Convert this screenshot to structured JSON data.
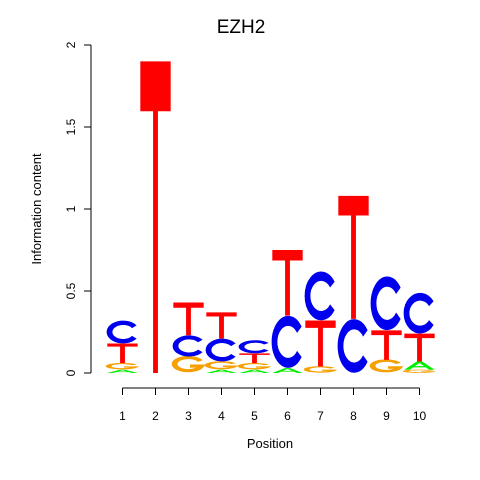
{
  "chart_data": {
    "type": "sequence-logo",
    "title": "EZH2",
    "xlabel": "Position",
    "ylabel": "Information content",
    "ylim": [
      0,
      2
    ],
    "yticks": [
      "0",
      "0.5",
      "1",
      "1.5",
      "2"
    ],
    "xticks": [
      "1",
      "2",
      "3",
      "4",
      "5",
      "6",
      "7",
      "8",
      "9",
      "10"
    ],
    "colors": {
      "A": "#00ee00",
      "C": "#0000ee",
      "G": "#f5a000",
      "T": "#ff0000"
    },
    "positions": [
      {
        "position": "1",
        "stack": [
          {
            "letter": "A",
            "height": 0.02
          },
          {
            "letter": "G",
            "height": 0.04
          },
          {
            "letter": "T",
            "height": 0.12
          },
          {
            "letter": "C",
            "height": 0.14
          }
        ]
      },
      {
        "position": "2",
        "stack": [
          {
            "letter": "T",
            "height": 1.9
          }
        ]
      },
      {
        "position": "3",
        "stack": [
          {
            "letter": "G",
            "height": 0.1
          },
          {
            "letter": "C",
            "height": 0.13
          },
          {
            "letter": "T",
            "height": 0.2
          }
        ]
      },
      {
        "position": "4",
        "stack": [
          {
            "letter": "A",
            "height": 0.02
          },
          {
            "letter": "G",
            "height": 0.05
          },
          {
            "letter": "C",
            "height": 0.14
          },
          {
            "letter": "T",
            "height": 0.16
          }
        ]
      },
      {
        "position": "5",
        "stack": [
          {
            "letter": "A",
            "height": 0.02
          },
          {
            "letter": "G",
            "height": 0.04
          },
          {
            "letter": "T",
            "height": 0.06
          },
          {
            "letter": "C",
            "height": 0.08
          }
        ]
      },
      {
        "position": "6",
        "stack": [
          {
            "letter": "A",
            "height": 0.03
          },
          {
            "letter": "C",
            "height": 0.32
          },
          {
            "letter": "T",
            "height": 0.4
          }
        ]
      },
      {
        "position": "7",
        "stack": [
          {
            "letter": "G",
            "height": 0.04
          },
          {
            "letter": "T",
            "height": 0.28
          },
          {
            "letter": "C",
            "height": 0.3
          }
        ]
      },
      {
        "position": "8",
        "stack": [
          {
            "letter": "C",
            "height": 0.33
          },
          {
            "letter": "T",
            "height": 0.75
          }
        ]
      },
      {
        "position": "9",
        "stack": [
          {
            "letter": "G",
            "height": 0.08
          },
          {
            "letter": "T",
            "height": 0.18
          },
          {
            "letter": "C",
            "height": 0.33
          }
        ]
      },
      {
        "position": "10",
        "stack": [
          {
            "letter": "G",
            "height": 0.02
          },
          {
            "letter": "A",
            "height": 0.05
          },
          {
            "letter": "T",
            "height": 0.17
          },
          {
            "letter": "C",
            "height": 0.25
          }
        ]
      }
    ]
  }
}
